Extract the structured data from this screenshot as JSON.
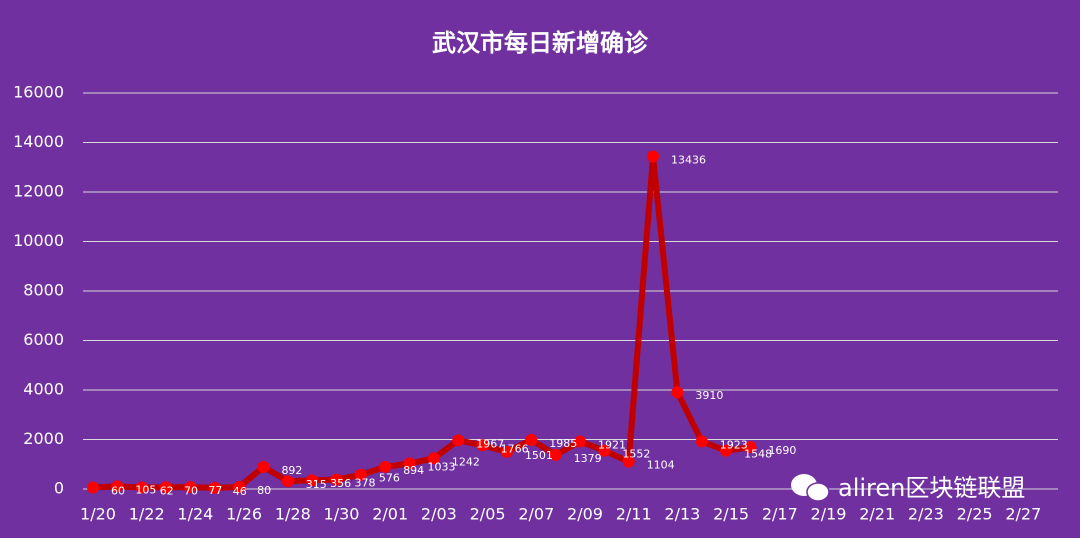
{
  "chart_data": {
    "type": "line",
    "title": "武汉市每日新增确诊",
    "categories": [
      "1/20",
      null,
      "1/22",
      null,
      "1/24",
      null,
      "1/26",
      null,
      "1/28",
      null,
      "1/30",
      null,
      "2/01",
      null,
      "2/03",
      null,
      "2/05",
      null,
      "2/07",
      null,
      "2/09",
      null,
      "2/11",
      null,
      "2/13",
      null,
      "2/15",
      null,
      "2/17",
      null,
      "2/19",
      null,
      "2/21",
      null,
      "2/23",
      null,
      "2/25",
      null,
      "2/27",
      null
    ],
    "series": [
      {
        "name": "武汉市",
        "line_color": "#c00000",
        "marker_color": "#ff0000",
        "values": [
          60,
          105,
          62,
          70,
          77,
          46,
          80,
          892,
          315,
          356,
          378,
          576,
          894,
          1033,
          1242,
          1967,
          1766,
          1501,
          1985,
          1379,
          1921,
          1552,
          1104,
          13436,
          3910,
          1923,
          1548,
          1690,
          null,
          null,
          null,
          null,
          null,
          null,
          null,
          null,
          null,
          null,
          null,
          null
        ]
      }
    ],
    "ylim": [
      0,
      16000
    ],
    "yticks": [
      0,
      2000,
      4000,
      6000,
      8000,
      10000,
      12000,
      14000,
      16000
    ],
    "grid": true,
    "watermark": "aliren区块链联盟"
  }
}
